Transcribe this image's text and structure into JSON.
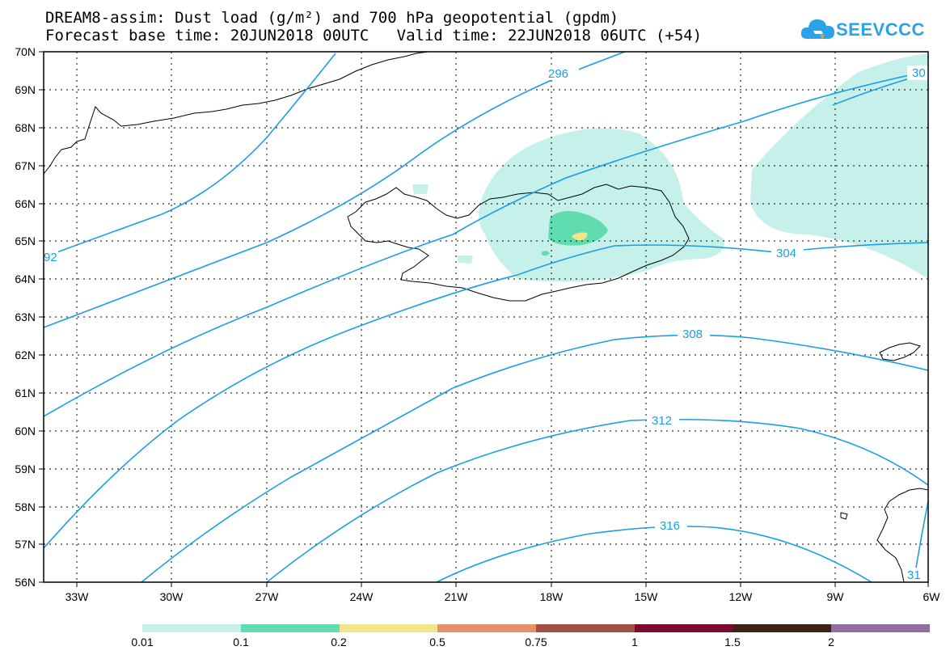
{
  "header": {
    "title_line1": "DREAM8-assim: Dust load (g/m²) and 700 hPa geopotential (gpdm)",
    "title_line2": "Forecast base time: 20JUN2018 00UTC   Valid time: 22JUN2018 06UTC (+54)"
  },
  "logo": {
    "text": "SEEVCCC",
    "icon": "cloud-icon",
    "color": "#2aa3e8"
  },
  "map": {
    "lat_labels": [
      "70N",
      "69N",
      "68N",
      "67N",
      "66N",
      "65N",
      "64N",
      "63N",
      "62N",
      "61N",
      "60N",
      "59N",
      "58N",
      "57N",
      "56N"
    ],
    "lon_labels": [
      "33W",
      "30W",
      "27W",
      "24W",
      "21W",
      "18W",
      "15W",
      "12W",
      "9W",
      "6W"
    ],
    "contour_labels": [
      "296",
      "30",
      "92",
      "304",
      "308",
      "312",
      "316",
      "31"
    ],
    "contour_color": "#1b9ee6"
  },
  "legend": {
    "colors": [
      "#c6f0ea",
      "#5fdcb0",
      "#f2e68a",
      "#e8906c",
      "#a24f44",
      "#7a0a2e",
      "#3c2412",
      "#946ea2"
    ],
    "labels": [
      "0.01",
      "0.1",
      "0.2",
      "0.5",
      "0.75",
      "1",
      "1.5",
      "2"
    ]
  }
}
